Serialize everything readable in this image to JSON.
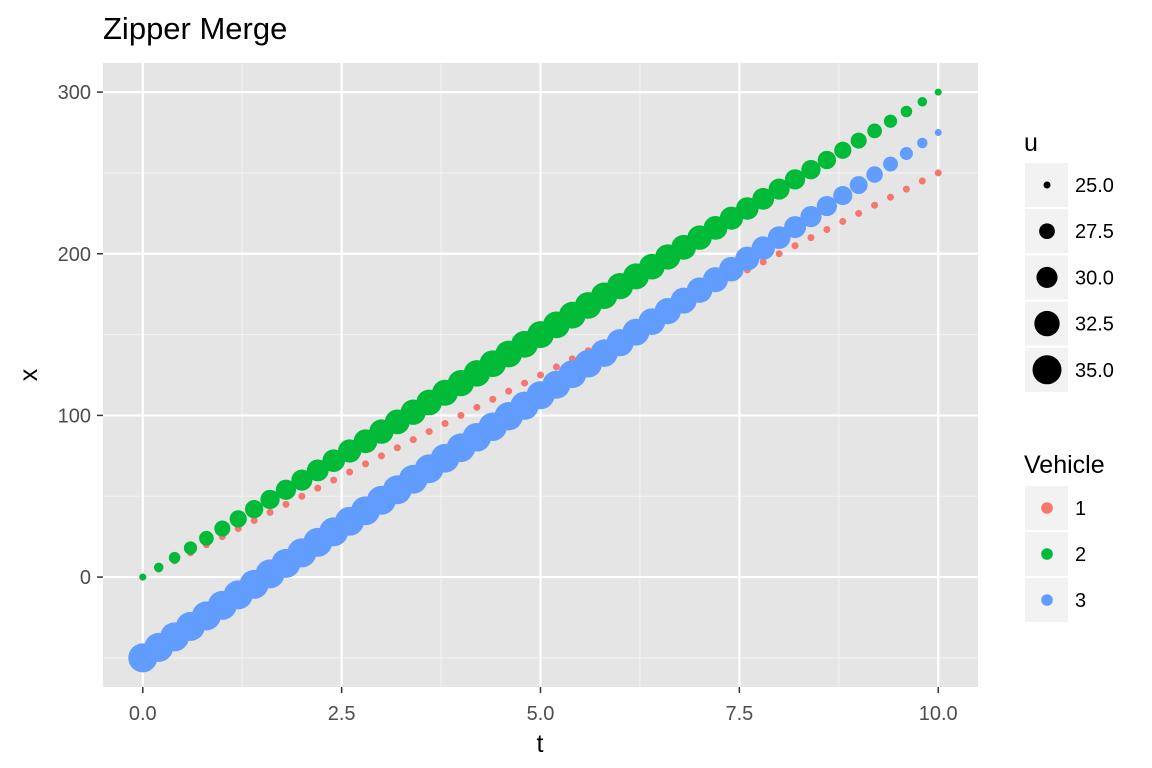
{
  "chart_data": {
    "type": "scatter",
    "title": "Zipper Merge",
    "xlabel": "t",
    "ylabel": "x",
    "xlim": [
      -0.5,
      10.5
    ],
    "ylim": [
      -68,
      318
    ],
    "x_ticks": [
      0,
      2.5,
      5,
      7.5,
      10
    ],
    "x_tick_labels": [
      "0.0",
      "2.5",
      "5.0",
      "7.5",
      "10.0"
    ],
    "y_ticks": [
      0,
      100,
      200,
      300
    ],
    "y_tick_labels": [
      "0",
      "100",
      "200",
      "300"
    ],
    "grid": true,
    "background": "#E5E5E5",
    "size_legend": {
      "title": "u",
      "entries": [
        {
          "label": "25.0",
          "value": 25
        },
        {
          "label": "27.5",
          "value": 27.5
        },
        {
          "label": "30.0",
          "value": 30
        },
        {
          "label": "32.5",
          "value": 32.5
        },
        {
          "label": "35.0",
          "value": 35
        }
      ]
    },
    "color_legend": {
      "title": "Vehicle",
      "entries": [
        {
          "label": "1",
          "color": "#F8766D"
        },
        {
          "label": "2",
          "color": "#00BA38"
        },
        {
          "label": "3",
          "color": "#619CFF"
        }
      ]
    },
    "series": [
      {
        "name": "1",
        "color": "#F8766D",
        "t_start": 0,
        "t_end": 10,
        "t_step": 0.2,
        "x_start": 0,
        "x_end": 250,
        "u_start": 25,
        "u_peak": 25,
        "u_end": 25
      },
      {
        "name": "2",
        "color": "#00BA38",
        "t_start": 0,
        "t_end": 10,
        "t_step": 0.2,
        "x_start": 0,
        "x_end": 300,
        "u_start": 25,
        "u_peak": 33.5,
        "u_end": 25
      },
      {
        "name": "3",
        "color": "#619CFF",
        "t_start": 0,
        "t_end": 10,
        "t_step": 0.2,
        "x_start": -50,
        "x_end": 275,
        "u_start": 35,
        "u_peak": 35,
        "u_end": 25
      }
    ]
  }
}
